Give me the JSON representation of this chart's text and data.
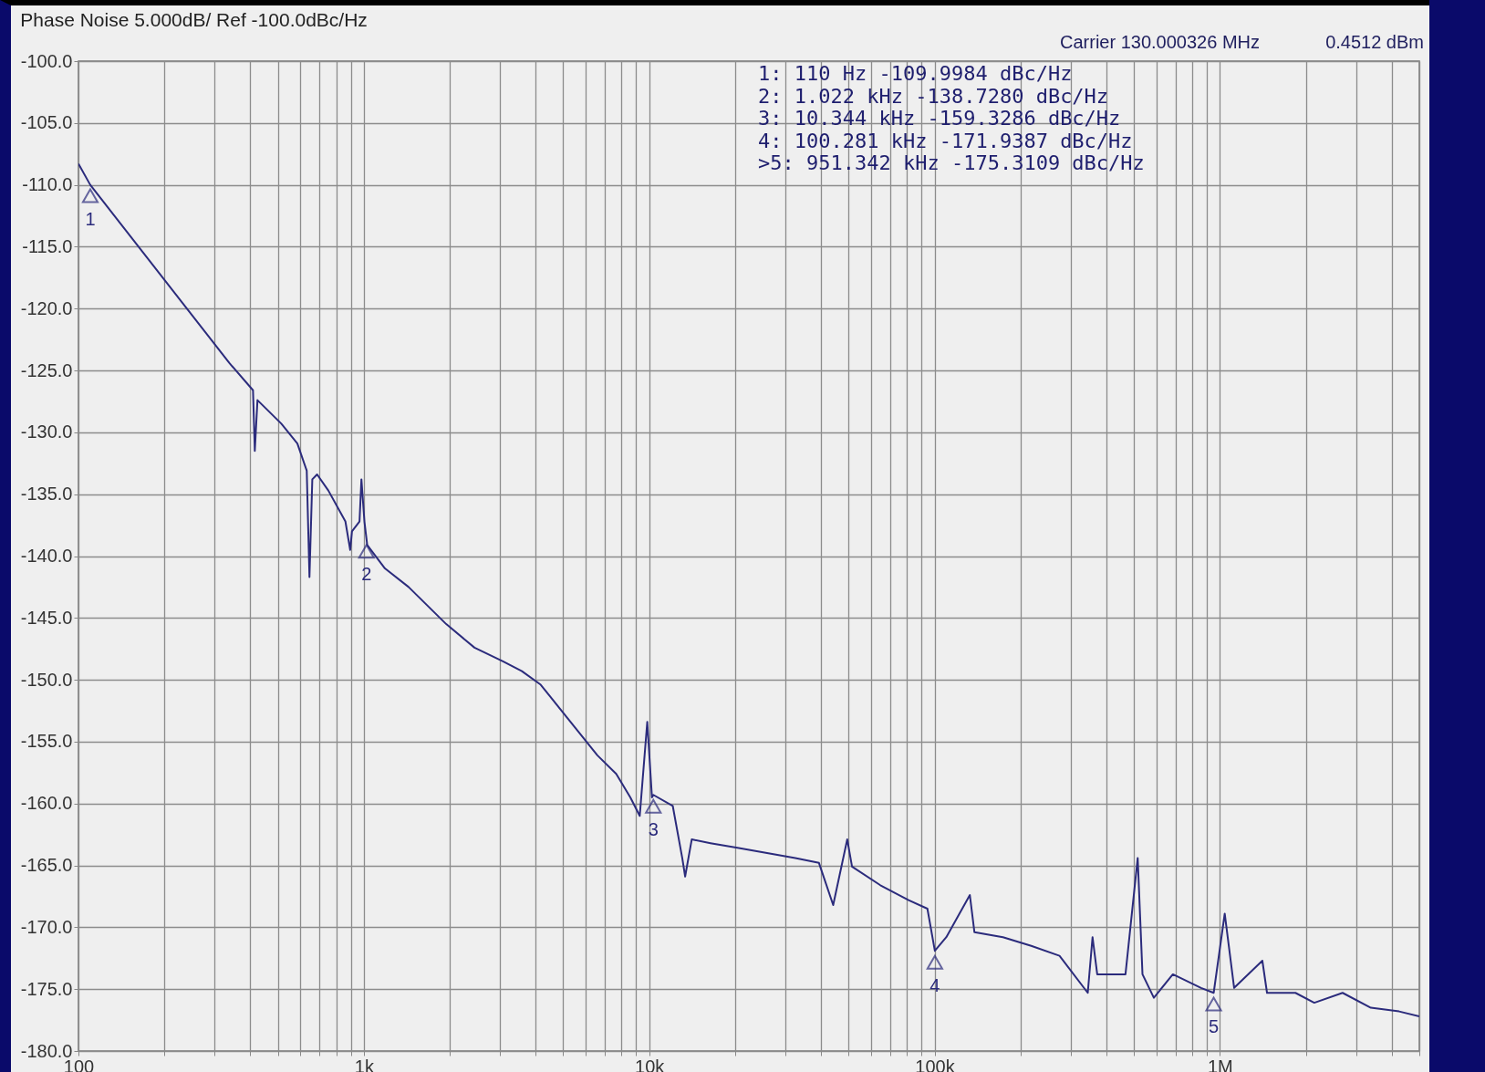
{
  "chart_data": {
    "type": "line",
    "title": "Phase Noise 5.000dB/ Ref -100.0dBc/Hz",
    "x": [
      100,
      110,
      338,
      409,
      415,
      424,
      514,
      585,
      631,
      645,
      660,
      686,
      751,
      862,
      896,
      909,
      966,
      981,
      1005,
      1028,
      1186,
      1435,
      1945,
      2443,
      3073,
      3580,
      4169,
      4855,
      5654,
      6584,
      7667,
      8590,
      9268,
      9848,
      10230,
      10344,
      12100,
      13060,
      13370,
      14100,
      16410,
      20610,
      25890,
      32520,
      39360,
      44150,
      49450,
      51400,
      64590,
      81130,
      94420,
      100281,
      110000,
      133000,
      138000,
      173700,
      218300,
      274200,
      344400,
      357900,
      371700,
      466900,
      515300,
      535600,
      587000,
      684400,
      859200,
      951342,
      1040000,
      1122000,
      1409000,
      1463000,
      1840000,
      2142000,
      2692000,
      3381000,
      4246000,
      5000000
    ],
    "series": [
      {
        "color": "#2b2b7c",
        "values": [
          -108.3,
          -110.0,
          -124.4,
          -126.6,
          -131.5,
          -127.4,
          -129.3,
          -130.9,
          -133.1,
          -141.7,
          -133.8,
          -133.4,
          -134.7,
          -137.2,
          -139.5,
          -138.0,
          -137.2,
          -133.8,
          -137.2,
          -139.1,
          -141.0,
          -142.5,
          -145.5,
          -147.4,
          -148.5,
          -149.3,
          -150.4,
          -152.3,
          -154.2,
          -156.1,
          -157.6,
          -159.5,
          -161.0,
          -153.4,
          -159.5,
          -159.3,
          -160.2,
          -164.4,
          -165.9,
          -162.9,
          -163.2,
          -163.6,
          -164.0,
          -164.4,
          -164.8,
          -168.2,
          -162.9,
          -165.1,
          -166.6,
          -167.8,
          -168.5,
          -171.9,
          -170.8,
          -167.4,
          -170.4,
          -170.8,
          -171.5,
          -172.3,
          -175.3,
          -170.8,
          -173.8,
          -173.8,
          -164.4,
          -173.8,
          -175.7,
          -173.8,
          -174.9,
          -175.3,
          -168.9,
          -174.9,
          -172.7,
          -175.3,
          -175.3,
          -176.1,
          -175.3,
          -176.5,
          -176.8,
          -177.2
        ]
      }
    ],
    "log": "x",
    "xlim": [
      100,
      5000000
    ],
    "xticks": [
      {
        "value": 100,
        "label": "100"
      },
      {
        "value": 200,
        "label": null
      },
      {
        "value": 300,
        "label": null
      },
      {
        "value": 400,
        "label": null
      },
      {
        "value": 500,
        "label": null
      },
      {
        "value": 600,
        "label": null
      },
      {
        "value": 700,
        "label": null
      },
      {
        "value": 800,
        "label": null
      },
      {
        "value": 900,
        "label": null
      },
      {
        "value": 1000,
        "label": "1k"
      },
      {
        "value": 2000,
        "label": null
      },
      {
        "value": 3000,
        "label": null
      },
      {
        "value": 4000,
        "label": null
      },
      {
        "value": 5000,
        "label": null
      },
      {
        "value": 6000,
        "label": null
      },
      {
        "value": 7000,
        "label": null
      },
      {
        "value": 8000,
        "label": null
      },
      {
        "value": 9000,
        "label": null
      },
      {
        "value": 10000,
        "label": "10k"
      },
      {
        "value": 20000,
        "label": null
      },
      {
        "value": 30000,
        "label": null
      },
      {
        "value": 40000,
        "label": null
      },
      {
        "value": 50000,
        "label": null
      },
      {
        "value": 60000,
        "label": null
      },
      {
        "value": 70000,
        "label": null
      },
      {
        "value": 80000,
        "label": null
      },
      {
        "value": 90000,
        "label": null
      },
      {
        "value": 100000,
        "label": "100k"
      },
      {
        "value": 200000,
        "label": null
      },
      {
        "value": 300000,
        "label": null
      },
      {
        "value": 400000,
        "label": null
      },
      {
        "value": 500000,
        "label": null
      },
      {
        "value": 600000,
        "label": null
      },
      {
        "value": 700000,
        "label": null
      },
      {
        "value": 800000,
        "label": null
      },
      {
        "value": 900000,
        "label": null
      },
      {
        "value": 1000000,
        "label": "1M"
      },
      {
        "value": 2000000,
        "label": null
      },
      {
        "value": 3000000,
        "label": null
      },
      {
        "value": 4000000,
        "label": null
      },
      {
        "value": 5000000,
        "label": null
      }
    ],
    "ylim": [
      -180,
      -100
    ],
    "yticks": [
      {
        "value": -100,
        "label": "-100.0"
      },
      {
        "value": -105,
        "label": "-105.0"
      },
      {
        "value": -110,
        "label": "-110.0"
      },
      {
        "value": -115,
        "label": "-115.0"
      },
      {
        "value": -120,
        "label": "-120.0"
      },
      {
        "value": -125,
        "label": "-125.0"
      },
      {
        "value": -130,
        "label": "-130.0"
      },
      {
        "value": -135,
        "label": "-135.0"
      },
      {
        "value": -140,
        "label": "-140.0"
      },
      {
        "value": -145,
        "label": "-145.0"
      },
      {
        "value": -150,
        "label": "-150.0"
      },
      {
        "value": -155,
        "label": "-155.0"
      },
      {
        "value": -160,
        "label": "-160.0"
      },
      {
        "value": -165,
        "label": "-165.0"
      },
      {
        "value": -170,
        "label": "-170.0"
      },
      {
        "value": -175,
        "label": "-175.0"
      },
      {
        "value": -180,
        "label": "-180.0"
      }
    ],
    "grid": true,
    "annotations": [
      "Carrier 130.000326 MHz",
      "0.4512 dBm",
      "1: 110 Hz -109.9984 dBc/Hz",
      "2: 1.022 kHz -138.7280 dBc/Hz",
      "3: 10.344 kHz -159.3286 dBc/Hz",
      "4: 100.281 kHz -171.9387 dBc/Hz",
      ">5: 951.342 kHz -175.3109 dBc/Hz",
      {
        "text": "1",
        "x": 110,
        "y": -109.9984
      },
      {
        "text": "2",
        "x": 1022,
        "y": -138.728
      },
      {
        "text": "3",
        "x": 10344,
        "y": -159.3286
      },
      {
        "text": "4",
        "x": 100281,
        "y": -171.9387
      },
      {
        "text": "5",
        "x": 951342,
        "y": -175.3109
      }
    ]
  }
}
